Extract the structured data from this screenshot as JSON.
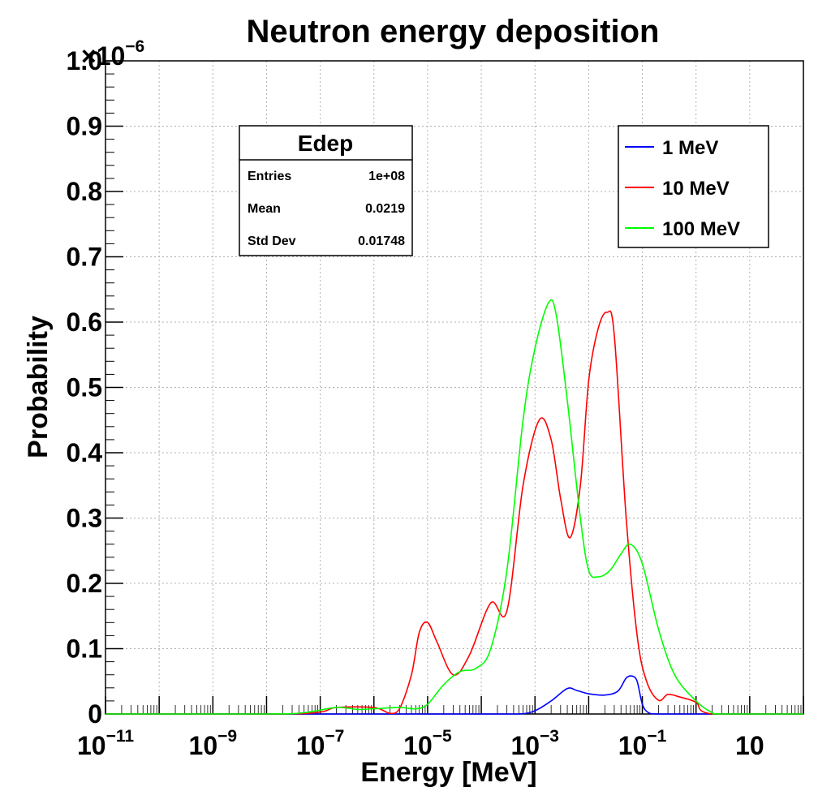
{
  "chart_data": {
    "type": "line",
    "title": "Neutron energy deposition",
    "xlabel": "Energy [MeV]",
    "ylabel": "Probability",
    "x_scale": "log",
    "xlim": [
      1e-11,
      100
    ],
    "ylim": [
      0,
      1e-06
    ],
    "y_multiplier_label": "×10",
    "y_multiplier_exp": "−6",
    "y_ticks": [
      "0",
      "0.1",
      "0.2",
      "0.3",
      "0.4",
      "0.5",
      "0.6",
      "0.7",
      "0.8",
      "0.9",
      "1.0"
    ],
    "x_ticks": [
      {
        "value": 1e-11,
        "base": "10",
        "exp": "−11"
      },
      {
        "value": 1e-09,
        "base": "10",
        "exp": "−9"
      },
      {
        "value": 1e-07,
        "base": "10",
        "exp": "−7"
      },
      {
        "value": 1e-05,
        "base": "10",
        "exp": "−5"
      },
      {
        "value": 0.001,
        "base": "10",
        "exp": "−3"
      },
      {
        "value": 0.1,
        "base": "10",
        "exp": "−1"
      },
      {
        "value": 10,
        "base": "10",
        "exp": ""
      }
    ],
    "grid": true,
    "legend_position": "top-right",
    "stats_box": {
      "title": "Edep",
      "rows": [
        {
          "label": "Entries",
          "value": "1e+08"
        },
        {
          "label": "Mean",
          "value": "0.0219"
        },
        {
          "label": "Std Dev",
          "value": "0.01748"
        }
      ]
    },
    "series": [
      {
        "name": "1 MeV",
        "color": "#0000ff",
        "points": [
          [
            1e-11,
            0
          ],
          [
            1e-07,
            0
          ],
          [
            1e-05,
            0
          ],
          [
            0.0001,
            0
          ],
          [
            0.0005,
            0
          ],
          [
            0.001,
            5e-09
          ],
          [
            0.002,
            2e-08
          ],
          [
            0.004,
            3.9e-08
          ],
          [
            0.006,
            3.6e-08
          ],
          [
            0.01,
            3.1e-08
          ],
          [
            0.02,
            2.9e-08
          ],
          [
            0.035,
            3.5e-08
          ],
          [
            0.05,
            5.5e-08
          ],
          [
            0.065,
            5.8e-08
          ],
          [
            0.08,
            5e-08
          ],
          [
            0.1,
            1.5e-08
          ],
          [
            0.13,
            2e-09
          ],
          [
            0.2,
            0
          ],
          [
            1,
            0
          ],
          [
            100,
            0
          ]
        ]
      },
      {
        "name": "10 MeV",
        "color": "#ff0000",
        "points": [
          [
            1e-11,
            0
          ],
          [
            1.5e-08,
            0
          ],
          [
            1e-07,
            3e-09
          ],
          [
            2e-07,
            1e-08
          ],
          [
            1e-06,
            1e-08
          ],
          [
            2e-06,
            1e-09
          ],
          [
            3e-06,
            8e-09
          ],
          [
            5e-06,
            6e-08
          ],
          [
            7e-06,
            1.25e-07
          ],
          [
            1e-05,
            1.4e-07
          ],
          [
            1.5e-05,
            1.1e-07
          ],
          [
            3e-05,
            6e-08
          ],
          [
            6e-05,
            9e-08
          ],
          [
            0.00015,
            1.7e-07
          ],
          [
            0.0003,
            1.58e-07
          ],
          [
            0.0006,
            3.5e-07
          ],
          [
            0.0012,
            4.5e-07
          ],
          [
            0.002,
            4.2e-07
          ],
          [
            0.003,
            3.3e-07
          ],
          [
            0.0045,
            2.7e-07
          ],
          [
            0.007,
            3.5e-07
          ],
          [
            0.01,
            5.1e-07
          ],
          [
            0.015,
            5.9e-07
          ],
          [
            0.022,
            6.15e-07
          ],
          [
            0.03,
            5.8e-07
          ],
          [
            0.05,
            3e-07
          ],
          [
            0.08,
            1.2e-07
          ],
          [
            0.12,
            5e-08
          ],
          [
            0.2,
            2.1e-08
          ],
          [
            0.3,
            3e-08
          ],
          [
            0.5,
            2.6e-08
          ],
          [
            1.0,
            1.8e-08
          ],
          [
            2.0,
            0
          ],
          [
            100,
            0
          ]
        ]
      },
      {
        "name": "100 MeV",
        "color": "#00ff00",
        "points": [
          [
            1e-11,
            0
          ],
          [
            1e-08,
            0
          ],
          [
            5e-08,
            2e-09
          ],
          [
            2e-07,
            1e-08
          ],
          [
            5e-07,
            7e-09
          ],
          [
            1e-06,
            8e-09
          ],
          [
            3e-06,
            1e-08
          ],
          [
            6e-06,
            8e-09
          ],
          [
            1e-05,
            1.5e-08
          ],
          [
            2e-05,
            4.5e-08
          ],
          [
            4e-05,
            6.5e-08
          ],
          [
            8e-05,
            7e-08
          ],
          [
            0.00015,
            1e-07
          ],
          [
            0.0003,
            2.2e-07
          ],
          [
            0.0006,
            4.5e-07
          ],
          [
            0.001,
            5.6e-07
          ],
          [
            0.0018,
            6.3e-07
          ],
          [
            0.0025,
            6.1e-07
          ],
          [
            0.004,
            4.8e-07
          ],
          [
            0.007,
            3e-07
          ],
          [
            0.01,
            2.2e-07
          ],
          [
            0.015,
            2.1e-07
          ],
          [
            0.025,
            2.2e-07
          ],
          [
            0.04,
            2.45e-07
          ],
          [
            0.06,
            2.6e-07
          ],
          [
            0.1,
            2.3e-07
          ],
          [
            0.2,
            1.3e-07
          ],
          [
            0.4,
            6e-08
          ],
          [
            1.0,
            2e-08
          ],
          [
            2.0,
            2e-09
          ],
          [
            3,
            0
          ],
          [
            100,
            0
          ]
        ]
      }
    ]
  }
}
